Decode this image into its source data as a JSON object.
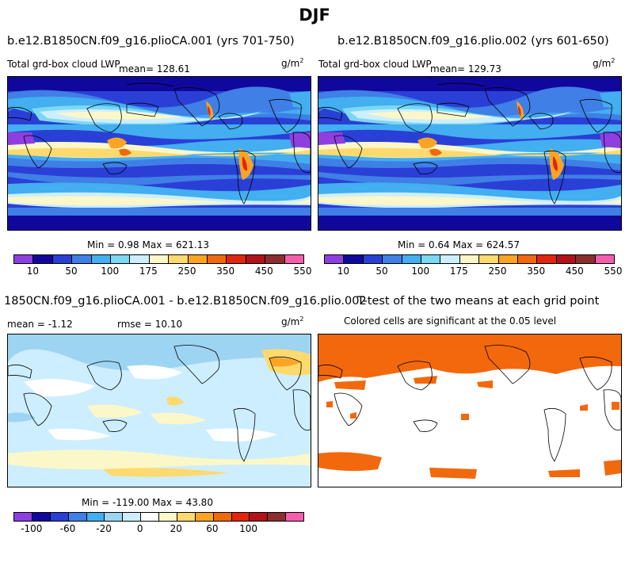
{
  "header": {
    "title": "DJF"
  },
  "panels": [
    {
      "title": "b.e12.B1850CN.f09_g16.plioCA.001 (yrs 701-750)",
      "variable": "Total grd-box cloud LWP",
      "mean": "mean= 128.61",
      "units": "g/m",
      "units_sup": "2",
      "minmax": "Min =    0.98 Max = 621.13"
    },
    {
      "title": "b.e12.B1850CN.f09_g16.plio.002 (yrs 601-650)",
      "variable": "Total grd-box cloud LWP",
      "mean": "mean= 129.73",
      "units": "g/m",
      "units_sup": "2",
      "minmax": "Min =    0.64 Max = 624.57"
    },
    {
      "title": "1850CN.f09_g16.plioCA.001 - b.e12.B1850CN.f09_g16.plio.002",
      "mean": "mean =  -1.12",
      "rmse": "rmse =  10.10",
      "units": "g/m",
      "units_sup": "2",
      "minmax": "Min = -119.00 Max =  43.80"
    },
    {
      "title": "T-test of the two means at each grid point",
      "subtitle": "Colored cells are significant at the 0.05 level"
    }
  ],
  "colorbars": {
    "lwp": {
      "colors": [
        "#8f3fe0",
        "#10089c",
        "#2a3fd6",
        "#3f7fe6",
        "#43aef0",
        "#7cd8f2",
        "#cdeeff",
        "#fcf7c8",
        "#fdd96e",
        "#fba424",
        "#f2680d",
        "#e2250e",
        "#b21218",
        "#8c2e2e",
        "#f45fad"
      ],
      "labels": [
        "10",
        "50",
        "100",
        "175",
        "250",
        "350",
        "450",
        "550"
      ]
    },
    "diff": {
      "colors": [
        "#8f3fe0",
        "#10089c",
        "#2a3fd6",
        "#3f7fe6",
        "#43aef0",
        "#9dd4f2",
        "#cdeeff",
        "#ffffff",
        "#fcf7c8",
        "#fdd96e",
        "#fba424",
        "#f2680d",
        "#e2250e",
        "#b21218",
        "#8c2e2e",
        "#f45fad"
      ],
      "labels": [
        "-100",
        "-60",
        "-20",
        "0",
        "20",
        "60",
        "100"
      ]
    }
  }
}
